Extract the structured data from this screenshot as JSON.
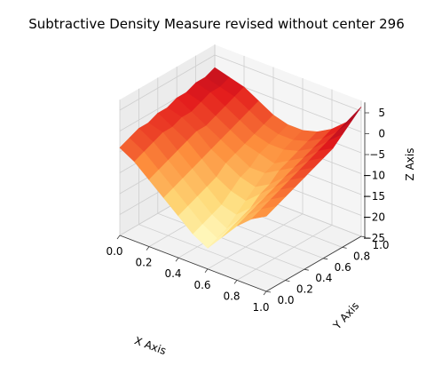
{
  "chart_data": {
    "type": "surface",
    "title": "Subtractive Density Measure revised without center 296",
    "xlabel": "X Axis",
    "ylabel": "Y Axis",
    "zlabel": "Z Axis",
    "xlim": [
      0.0,
      1.0
    ],
    "ylim": [
      0.0,
      1.0
    ],
    "zlim": [
      -25,
      7.5
    ],
    "xticks": [
      "0.0",
      "0.2",
      "0.4",
      "0.6",
      "0.8",
      "1.0"
    ],
    "yticks": [
      "0.0",
      "0.2",
      "0.4",
      "0.6",
      "0.8",
      "1.0"
    ],
    "zticks": [
      "5",
      "0",
      "−5",
      "−10",
      "−15",
      "−20",
      "−25"
    ],
    "colormap": "YlOrRd",
    "grid": true,
    "series": [
      {
        "x": [
          0.0,
          0.1,
          0.2,
          0.3,
          0.4,
          0.5,
          0.6,
          0.7,
          0.8,
          0.9,
          1.0
        ],
        "y": [
          0.0,
          0.1,
          0.2,
          0.3,
          0.4,
          0.5,
          0.6,
          0.7,
          0.8,
          0.9,
          1.0
        ],
        "z": [
          [
            -4,
            -6,
            -9,
            -12,
            -15,
            -18,
            -20,
            -16,
            -12,
            -9,
            -7
          ],
          [
            -3,
            -5,
            -8,
            -11,
            -14,
            -17,
            -19,
            -15,
            -11,
            -8,
            -6
          ],
          [
            -2,
            -4,
            -7,
            -10,
            -13,
            -16,
            -18,
            -14,
            -10,
            -7,
            -5
          ],
          [
            -2,
            -3,
            -6,
            -9,
            -12,
            -15,
            -16,
            -13,
            -9,
            -6,
            -4
          ],
          [
            -1,
            -3,
            -5,
            -8,
            -11,
            -13,
            -14,
            -11,
            -8,
            -5,
            -3
          ],
          [
            -1,
            -2,
            -4,
            -7,
            -9,
            -11,
            -12,
            -10,
            -7,
            -4,
            -2
          ],
          [
            0,
            -2,
            -4,
            -6,
            -8,
            -10,
            -10,
            -8,
            -6,
            -3,
            -1
          ],
          [
            0,
            -1,
            -3,
            -5,
            -7,
            -8,
            -9,
            -7,
            -5,
            -2,
            0
          ],
          [
            1,
            0,
            -2,
            -4,
            -6,
            -7,
            -7,
            -6,
            -4,
            -1,
            2
          ],
          [
            1,
            0,
            -1,
            -3,
            -5,
            -6,
            -6,
            -5,
            -3,
            0,
            4
          ],
          [
            2,
            1,
            0,
            -2,
            -4,
            -5,
            -5,
            -4,
            -2,
            1,
            6
          ]
        ]
      }
    ]
  }
}
